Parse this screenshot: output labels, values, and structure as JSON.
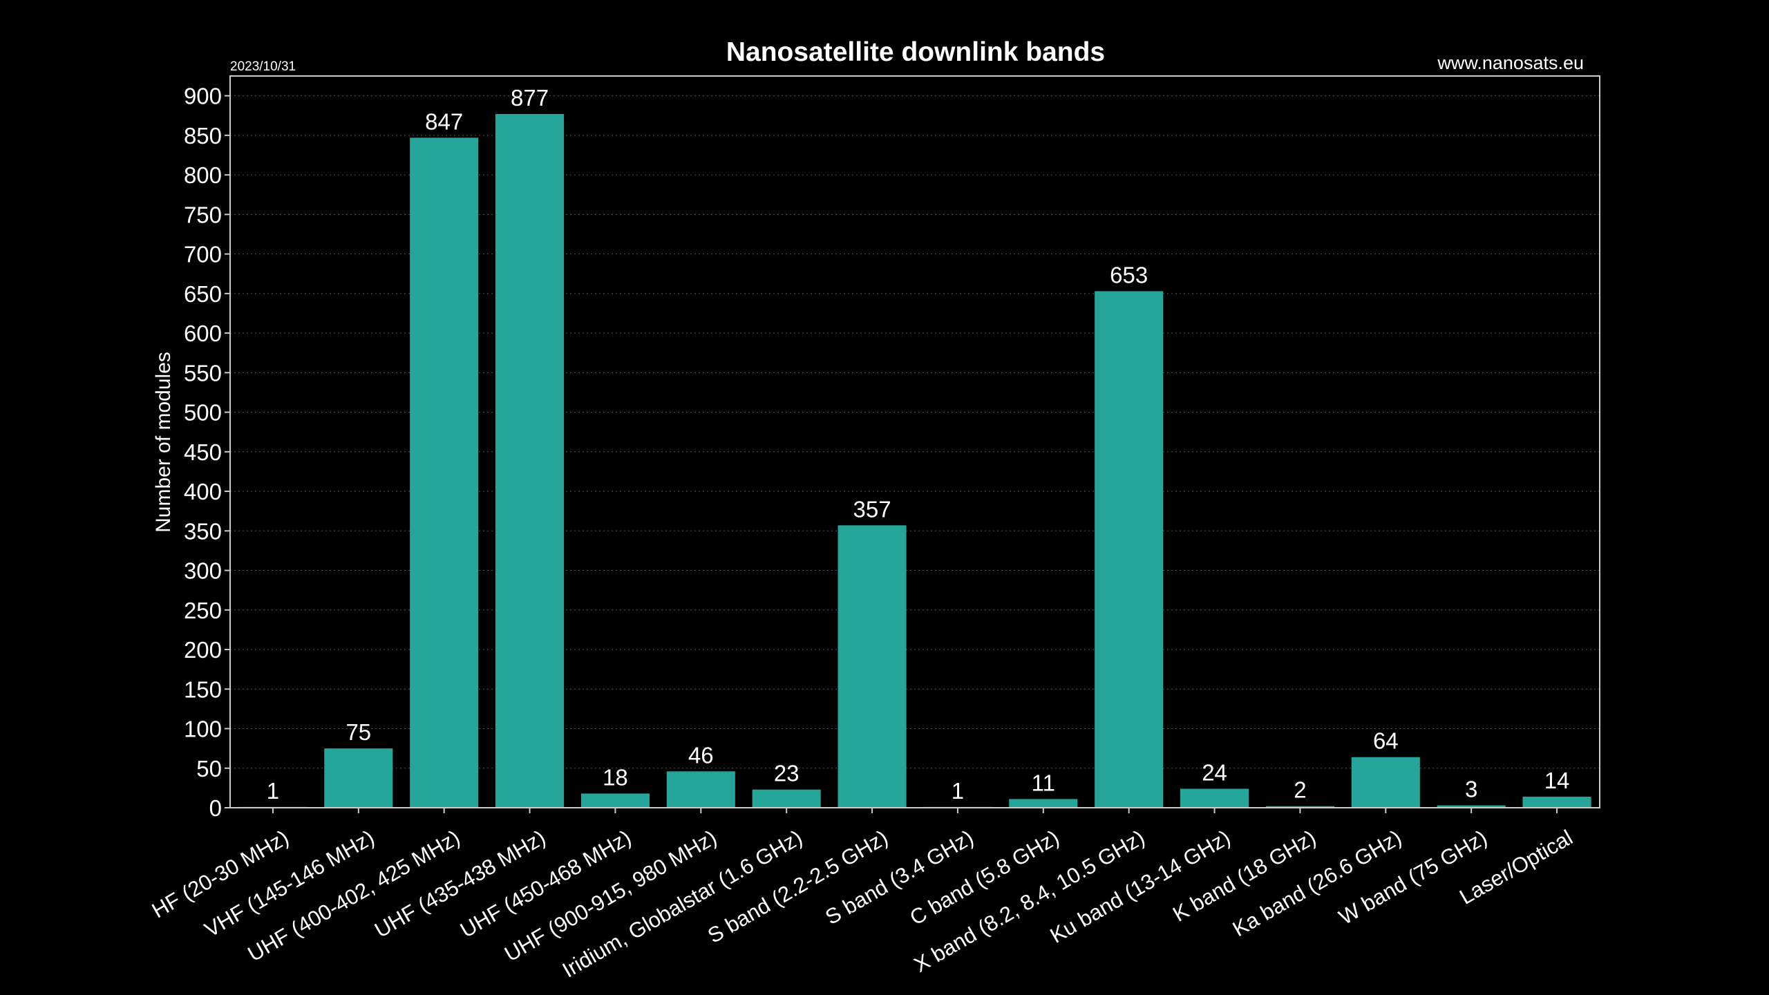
{
  "chart_data": {
    "type": "bar",
    "title": "Nanosatellite downlink bands",
    "date": "2023/10/31",
    "source": "www.nanosats.eu",
    "xlabel": "",
    "ylabel": "Number of modules",
    "ylim": [
      0,
      925
    ],
    "yticks": [
      0,
      50,
      100,
      150,
      200,
      250,
      300,
      350,
      400,
      450,
      500,
      550,
      600,
      650,
      700,
      750,
      800,
      850,
      900
    ],
    "grid": true,
    "categories": [
      "HF (20-30 MHz)",
      "VHF (145-146 MHz)",
      "UHF (400-402, 425 MHz)",
      "UHF (435-438 MHz)",
      "UHF (450-468 MHz)",
      "UHF (900-915, 980 MHz)",
      "Iridium, Globalstar (1.6 GHz)",
      "S band (2.2-2.5 GHz)",
      "S band (3.4 GHz)",
      "C band (5.8 GHz)",
      "X band (8.2, 8.4, 10.5 GHz)",
      "Ku band (13-14 GHz)",
      "K band (18 GHz)",
      "Ka band (26.6 GHz)",
      "W band (75 GHz)",
      "Laser/Optical"
    ],
    "values": [
      1,
      75,
      847,
      877,
      18,
      46,
      23,
      357,
      1,
      11,
      653,
      24,
      2,
      64,
      3,
      14
    ],
    "colors": {
      "bar": "#26a69a",
      "background": "#000000",
      "text": "#ffffff"
    }
  }
}
